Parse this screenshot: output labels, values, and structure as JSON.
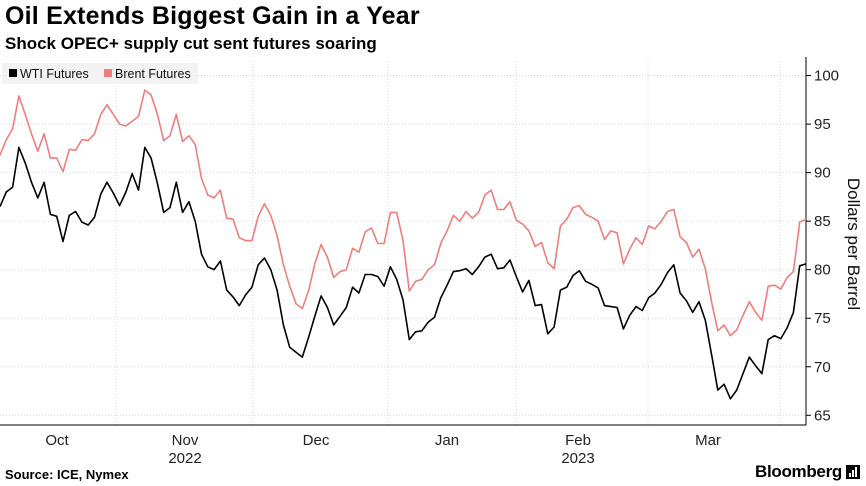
{
  "chart_data": {
    "type": "line",
    "title": "Oil Extends Biggest Gain in a Year",
    "subtitle": "Shock OPEC+ supply cut sent futures soaring",
    "ylabel": "Dollars per Barrel",
    "ylim": [
      64,
      101.5
    ],
    "yticks": [
      65,
      70,
      75,
      80,
      85,
      90,
      95,
      100
    ],
    "months": [
      {
        "label": "Oct",
        "year": ""
      },
      {
        "label": "Nov",
        "year": "2022"
      },
      {
        "label": "Dec",
        "year": ""
      },
      {
        "label": "Jan",
        "year": ""
      },
      {
        "label": "Feb",
        "year": "2023"
      },
      {
        "label": "Mar",
        "year": ""
      }
    ],
    "x_days": 218,
    "series": [
      {
        "name": "WTI Futures",
        "color": "#000000",
        "points": [
          [
            0,
            86.5
          ],
          [
            2,
            88
          ],
          [
            4,
            88.5
          ],
          [
            6,
            92.6
          ],
          [
            8,
            91
          ],
          [
            10,
            89
          ],
          [
            12,
            87.4
          ],
          [
            14,
            89
          ],
          [
            16,
            85.7
          ],
          [
            18,
            85.5
          ],
          [
            20,
            82.9
          ],
          [
            22,
            85.6
          ],
          [
            24,
            86
          ],
          [
            26,
            84.9
          ],
          [
            28,
            84.6
          ],
          [
            30,
            85.4
          ],
          [
            32,
            87.8
          ],
          [
            34,
            89
          ],
          [
            36,
            87.9
          ],
          [
            38,
            86.6
          ],
          [
            40,
            88
          ],
          [
            42,
            89.9
          ],
          [
            44,
            88.2
          ],
          [
            46,
            92.6
          ],
          [
            48,
            91.5
          ],
          [
            50,
            88.9
          ],
          [
            52,
            85.9
          ],
          [
            54,
            86.4
          ],
          [
            56,
            89
          ],
          [
            58,
            85.9
          ],
          [
            60,
            87
          ],
          [
            62,
            85
          ],
          [
            64,
            81.6
          ],
          [
            66,
            80.3
          ],
          [
            68,
            80
          ],
          [
            70,
            80.9
          ],
          [
            72,
            77.9
          ],
          [
            74,
            77.2
          ],
          [
            76,
            76.3
          ],
          [
            78,
            77.4
          ],
          [
            80,
            78.2
          ],
          [
            82,
            80.5
          ],
          [
            84,
            81.2
          ],
          [
            86,
            80
          ],
          [
            88,
            77.9
          ],
          [
            90,
            74.3
          ],
          [
            92,
            72
          ],
          [
            94,
            71.5
          ],
          [
            96,
            71
          ],
          [
            98,
            73
          ],
          [
            100,
            75.2
          ],
          [
            102,
            77.3
          ],
          [
            104,
            76.1
          ],
          [
            106,
            74.3
          ],
          [
            108,
            75.2
          ],
          [
            110,
            76.1
          ],
          [
            112,
            78.2
          ],
          [
            114,
            77.6
          ],
          [
            116,
            79.5
          ],
          [
            118,
            79.5
          ],
          [
            120,
            79.3
          ],
          [
            122,
            78.3
          ],
          [
            124,
            80.3
          ],
          [
            126,
            79
          ],
          [
            128,
            76.9
          ],
          [
            130,
            72.8
          ],
          [
            132,
            73.6
          ],
          [
            134,
            73.7
          ],
          [
            136,
            74.6
          ],
          [
            138,
            75.1
          ],
          [
            140,
            77.1
          ],
          [
            142,
            78.4
          ],
          [
            144,
            79.8
          ],
          [
            146,
            79.9
          ],
          [
            148,
            80.1
          ],
          [
            150,
            79.5
          ],
          [
            152,
            80.3
          ],
          [
            154,
            81.3
          ],
          [
            156,
            81.6
          ],
          [
            158,
            80.1
          ],
          [
            160,
            80.2
          ],
          [
            162,
            81
          ],
          [
            164,
            79.3
          ],
          [
            166,
            77.7
          ],
          [
            168,
            78.9
          ],
          [
            170,
            76.3
          ],
          [
            172,
            76.4
          ],
          [
            174,
            73.4
          ],
          [
            176,
            74.1
          ],
          [
            178,
            77.9
          ],
          [
            180,
            78.2
          ],
          [
            182,
            79.4
          ],
          [
            184,
            79.9
          ],
          [
            186,
            78.8
          ],
          [
            188,
            78.5
          ],
          [
            190,
            78.1
          ],
          [
            192,
            76.3
          ],
          [
            194,
            76.2
          ],
          [
            196,
            76.1
          ],
          [
            198,
            73.9
          ],
          [
            200,
            75.3
          ],
          [
            202,
            76.2
          ],
          [
            204,
            75.8
          ],
          [
            206,
            77.1
          ],
          [
            208,
            77.6
          ],
          [
            210,
            78.5
          ],
          [
            212,
            79.7
          ],
          [
            214,
            80.5
          ],
          [
            216,
            77.6
          ],
          [
            218,
            76.8
          ],
          [
            220,
            75.6
          ],
          [
            222,
            76.7
          ],
          [
            224,
            74.8
          ],
          [
            226,
            71.3
          ],
          [
            228,
            67.6
          ],
          [
            230,
            68.2
          ],
          [
            232,
            66.7
          ],
          [
            234,
            67.6
          ],
          [
            236,
            69.3
          ],
          [
            238,
            71
          ],
          [
            240,
            70.1
          ],
          [
            242,
            69.3
          ],
          [
            244,
            72.8
          ],
          [
            246,
            73.2
          ],
          [
            248,
            72.9
          ],
          [
            250,
            74
          ],
          [
            252,
            75.6
          ],
          [
            254,
            80.4
          ],
          [
            256,
            80.6
          ]
        ]
      },
      {
        "name": "Brent Futures",
        "color": "#f07d7d",
        "points": [
          [
            0,
            91.8
          ],
          [
            2,
            93.4
          ],
          [
            4,
            94.5
          ],
          [
            6,
            97.9
          ],
          [
            8,
            96
          ],
          [
            10,
            94
          ],
          [
            12,
            92.2
          ],
          [
            14,
            94
          ],
          [
            16,
            91.5
          ],
          [
            18,
            91.5
          ],
          [
            20,
            90.1
          ],
          [
            22,
            92.4
          ],
          [
            24,
            92.3
          ],
          [
            26,
            93.4
          ],
          [
            28,
            93.3
          ],
          [
            30,
            94
          ],
          [
            32,
            96
          ],
          [
            34,
            97
          ],
          [
            36,
            96
          ],
          [
            38,
            95
          ],
          [
            40,
            94.8
          ],
          [
            42,
            95.3
          ],
          [
            44,
            95.8
          ],
          [
            46,
            98.5
          ],
          [
            48,
            98
          ],
          [
            50,
            96
          ],
          [
            52,
            93.3
          ],
          [
            54,
            93.8
          ],
          [
            56,
            96
          ],
          [
            58,
            93.2
          ],
          [
            60,
            93.8
          ],
          [
            62,
            92.9
          ],
          [
            64,
            89.4
          ],
          [
            66,
            87.7
          ],
          [
            68,
            87.4
          ],
          [
            70,
            88.2
          ],
          [
            72,
            85.3
          ],
          [
            74,
            85.2
          ],
          [
            76,
            83.3
          ],
          [
            78,
            83
          ],
          [
            80,
            83
          ],
          [
            82,
            85.5
          ],
          [
            84,
            86.8
          ],
          [
            86,
            85.6
          ],
          [
            88,
            83.5
          ],
          [
            90,
            80.5
          ],
          [
            92,
            78.3
          ],
          [
            94,
            76.5
          ],
          [
            96,
            76
          ],
          [
            98,
            77.8
          ],
          [
            100,
            80.6
          ],
          [
            102,
            82.6
          ],
          [
            104,
            81.3
          ],
          [
            106,
            79.2
          ],
          [
            108,
            79.8
          ],
          [
            110,
            80
          ],
          [
            112,
            82.2
          ],
          [
            114,
            81.8
          ],
          [
            116,
            83.9
          ],
          [
            118,
            84.3
          ],
          [
            120,
            82.7
          ],
          [
            122,
            82.7
          ],
          [
            124,
            85.9
          ],
          [
            126,
            85.9
          ],
          [
            128,
            83
          ],
          [
            130,
            77.8
          ],
          [
            132,
            78.8
          ],
          [
            134,
            79
          ],
          [
            136,
            80
          ],
          [
            138,
            80.5
          ],
          [
            140,
            82.7
          ],
          [
            142,
            84
          ],
          [
            144,
            85.6
          ],
          [
            146,
            85
          ],
          [
            148,
            86
          ],
          [
            150,
            85.3
          ],
          [
            152,
            85.9
          ],
          [
            154,
            87.7
          ],
          [
            156,
            88.2
          ],
          [
            158,
            86.2
          ],
          [
            160,
            86.2
          ],
          [
            162,
            87
          ],
          [
            164,
            85.1
          ],
          [
            166,
            84.7
          ],
          [
            168,
            84
          ],
          [
            170,
            82.4
          ],
          [
            172,
            82.8
          ],
          [
            174,
            80.7
          ],
          [
            176,
            80.1
          ],
          [
            178,
            84.5
          ],
          [
            180,
            85.2
          ],
          [
            182,
            86.4
          ],
          [
            184,
            86.6
          ],
          [
            186,
            85.7
          ],
          [
            188,
            85.4
          ],
          [
            190,
            85
          ],
          [
            192,
            83.1
          ],
          [
            194,
            84
          ],
          [
            196,
            83.8
          ],
          [
            198,
            80.6
          ],
          [
            200,
            82.1
          ],
          [
            202,
            83.3
          ],
          [
            204,
            82.6
          ],
          [
            206,
            84.5
          ],
          [
            208,
            84.2
          ],
          [
            210,
            85
          ],
          [
            212,
            86
          ],
          [
            214,
            86.2
          ],
          [
            216,
            83.4
          ],
          [
            218,
            82.8
          ],
          [
            220,
            81.3
          ],
          [
            222,
            82.1
          ],
          [
            224,
            80.1
          ],
          [
            226,
            76.7
          ],
          [
            228,
            73.7
          ],
          [
            230,
            74.3
          ],
          [
            232,
            73.2
          ],
          [
            234,
            73.8
          ],
          [
            236,
            75.3
          ],
          [
            238,
            76.7
          ],
          [
            240,
            75.6
          ],
          [
            242,
            74.8
          ],
          [
            244,
            78.3
          ],
          [
            246,
            78.4
          ],
          [
            248,
            78
          ],
          [
            250,
            79.2
          ],
          [
            252,
            79.8
          ],
          [
            254,
            84.9
          ],
          [
            256,
            85.2
          ]
        ]
      }
    ],
    "legend": "top-left",
    "source": "Source: ICE, Nymex",
    "brand": "Bloomberg"
  }
}
